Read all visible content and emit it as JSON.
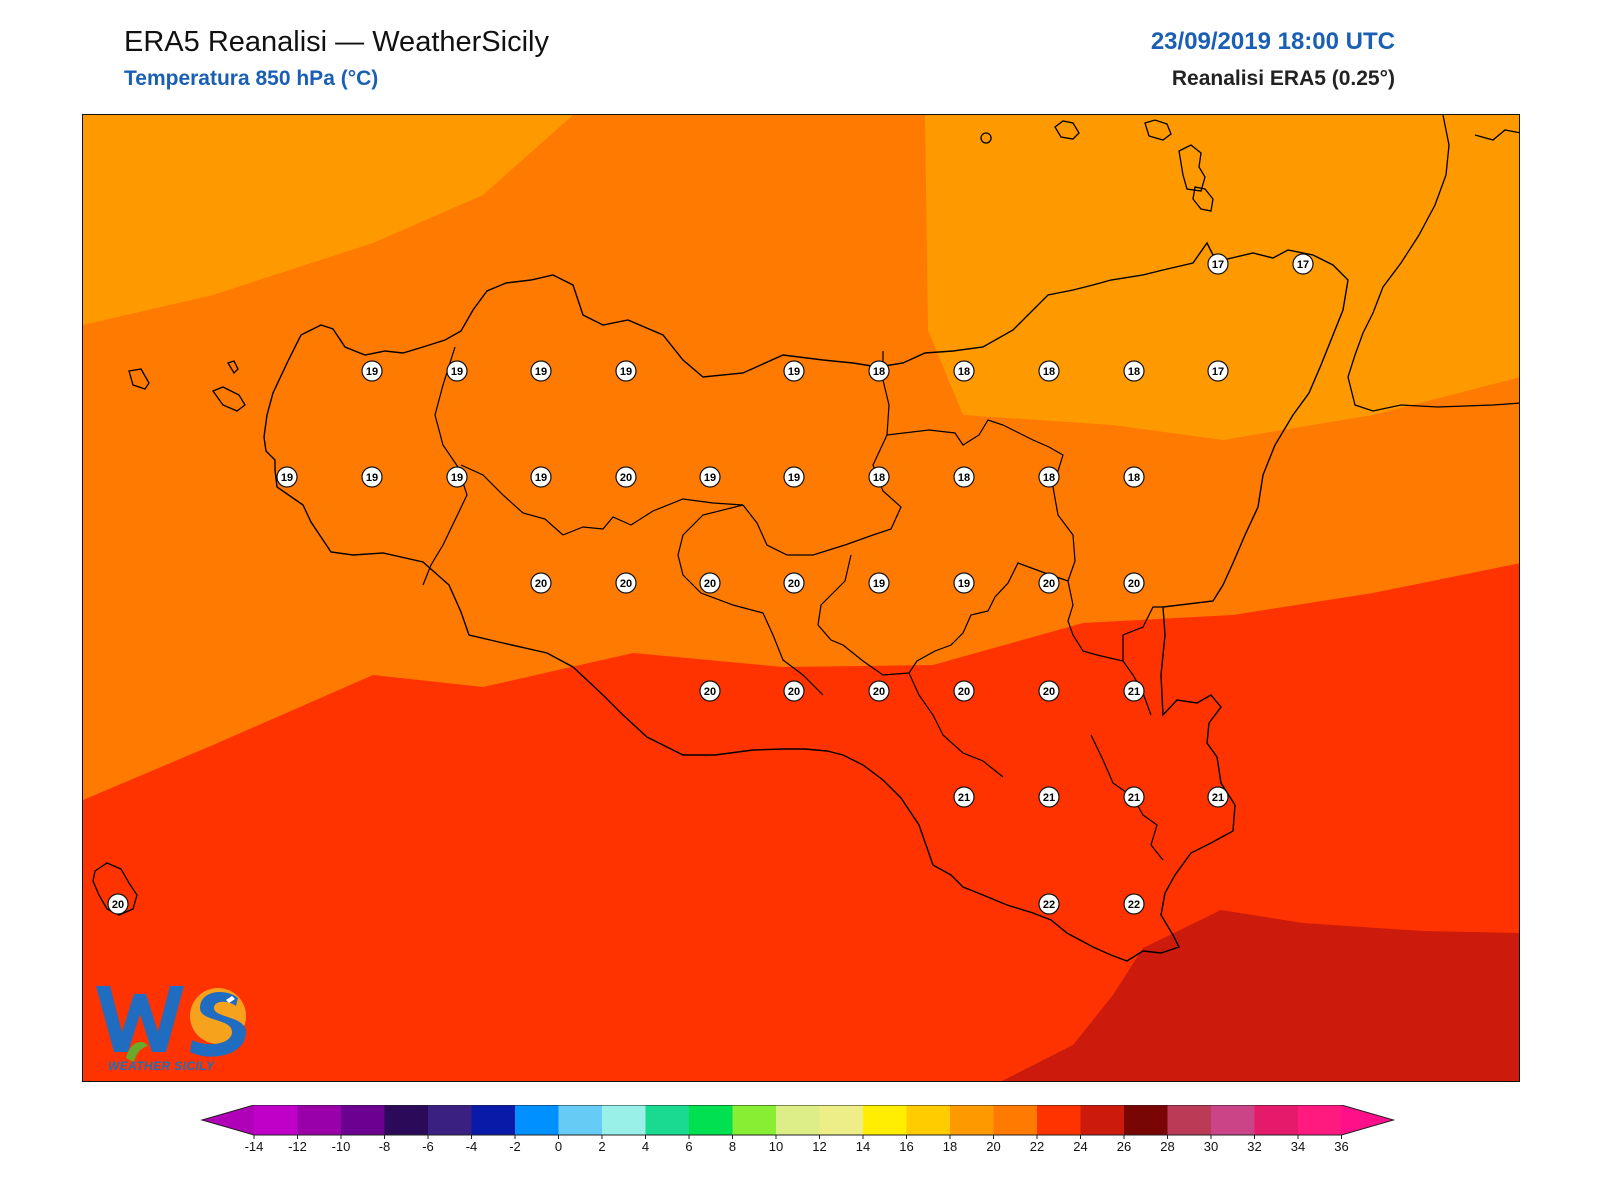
{
  "header": {
    "title": "ERA5 Reanalisi — WeatherSicily",
    "subtitle": "Temperatura 850 hPa (°C)",
    "datetime": "23/09/2019 18:00 UTC",
    "source": "Reanalisi ERA5 (0.25°)"
  },
  "colors": {
    "accent_blue": "#1a5fb4",
    "field_16_18": "#ff9900",
    "field_18_20": "#ff7a00",
    "field_20_22": "#ff3300",
    "field_22_24": "#cc1a0d"
  },
  "logo": {
    "text": "WEATHER SICILY",
    "icon": "ws-logo-icon"
  },
  "colorbar": {
    "ticks": [
      "-14",
      "-12",
      "-10",
      "-8",
      "-6",
      "-4",
      "-2",
      "0",
      "2",
      "4",
      "6",
      "8",
      "10",
      "12",
      "14",
      "16",
      "18",
      "20",
      "22",
      "24",
      "26",
      "28",
      "30",
      "32",
      "34",
      "36"
    ],
    "colors": [
      "#c000c8",
      "#9900aa",
      "#6c0090",
      "#2b0a5a",
      "#3a2080",
      "#0a1aa8",
      "#0090ff",
      "#66ccf5",
      "#99f0e8",
      "#1ad990",
      "#00e050",
      "#88ee33",
      "#ddee88",
      "#eeee88",
      "#ffee00",
      "#ffcc00",
      "#ff9900",
      "#ff7a00",
      "#ff3300",
      "#cc1a0d",
      "#7a0505",
      "#bb3a55",
      "#cc4488",
      "#e51a6a",
      "#ff1a80"
    ],
    "extend_min_color": "#b000b8",
    "extend_max_color": "#ff0f88"
  },
  "station_values": [
    {
      "v": "17"
    },
    {
      "v": "17"
    },
    {
      "v": "19"
    },
    {
      "v": "19"
    },
    {
      "v": "19"
    },
    {
      "v": "19"
    },
    {
      "v": "19"
    },
    {
      "v": "18"
    },
    {
      "v": "18"
    },
    {
      "v": "18"
    },
    {
      "v": "18"
    },
    {
      "v": "17"
    },
    {
      "v": "19"
    },
    {
      "v": "19"
    },
    {
      "v": "19"
    },
    {
      "v": "19"
    },
    {
      "v": "20"
    },
    {
      "v": "19"
    },
    {
      "v": "19"
    },
    {
      "v": "18"
    },
    {
      "v": "18"
    },
    {
      "v": "18"
    },
    {
      "v": "18"
    },
    {
      "v": "20"
    },
    {
      "v": "20"
    },
    {
      "v": "20"
    },
    {
      "v": "20"
    },
    {
      "v": "19"
    },
    {
      "v": "19"
    },
    {
      "v": "20"
    },
    {
      "v": "20"
    },
    {
      "v": "20"
    },
    {
      "v": "20"
    },
    {
      "v": "20"
    },
    {
      "v": "20"
    },
    {
      "v": "20"
    },
    {
      "v": "21"
    },
    {
      "v": "21"
    },
    {
      "v": "21"
    },
    {
      "v": "21"
    },
    {
      "v": "21"
    },
    {
      "v": "20"
    },
    {
      "v": "22"
    },
    {
      "v": "22"
    }
  ]
}
